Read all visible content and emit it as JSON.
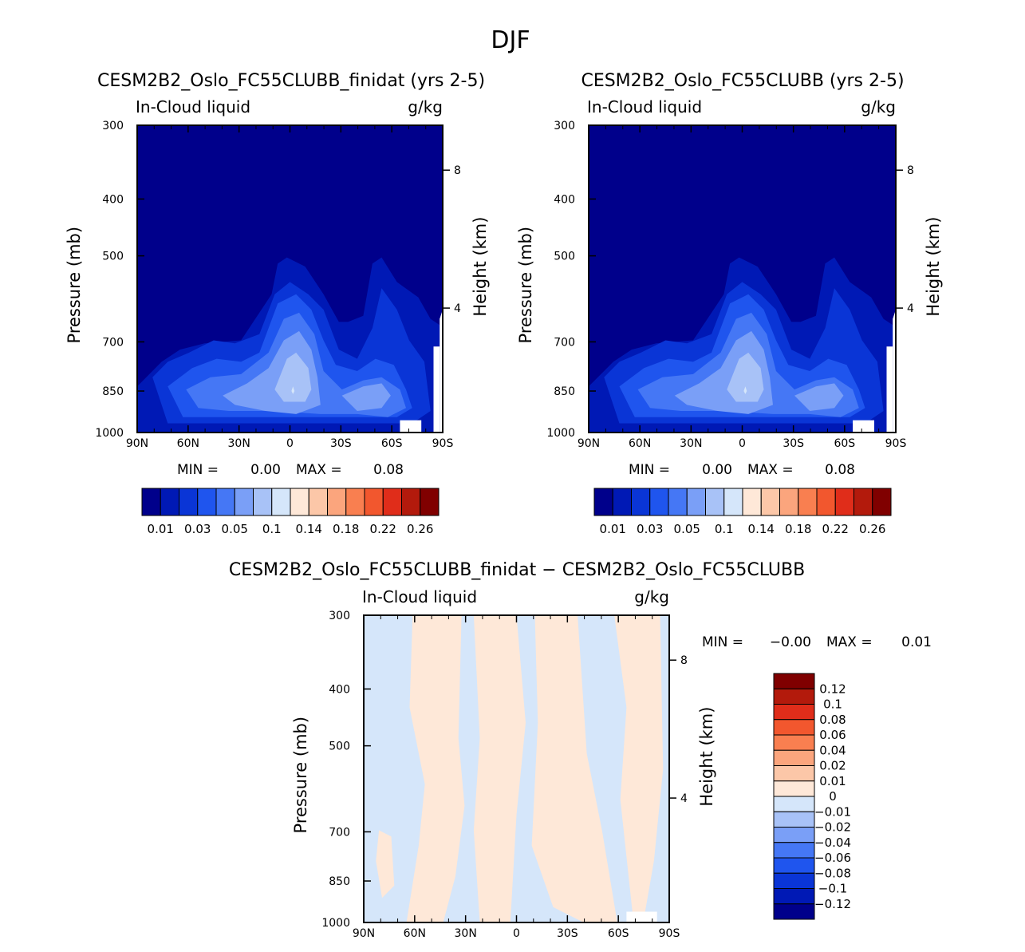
{
  "page_title": "DJF",
  "colors": {
    "cmap_main": [
      "#00008b",
      "#0019b5",
      "#0a35d6",
      "#1f55ee",
      "#4577f5",
      "#7a9ff7",
      "#a8c2f7",
      "#d5e6fa",
      "#fee8d8",
      "#fcc7a8",
      "#fba57d",
      "#f97f50",
      "#f2572e",
      "#e02d1a",
      "#b31a0c",
      "#800000"
    ],
    "cmap_diff": [
      "#00008b",
      "#0019b5",
      "#0a35d6",
      "#1f55ee",
      "#4577f5",
      "#7a9ff7",
      "#a8c2f7",
      "#d5e6fa",
      "#fee8d8",
      "#fcc7a8",
      "#fba57d",
      "#f97f50",
      "#f2572e",
      "#e02d1a",
      "#b31a0c",
      "#800000"
    ]
  },
  "chart_data": [
    {
      "type": "contour",
      "title": "CESM2B2_Oslo_FC55CLUBB_finidat (yrs 2-5)",
      "variable": "In-Cloud liquid",
      "units": "g/kg",
      "ylabel": "Pressure (mb)",
      "y2label": "Height (km)",
      "x_ticks": [
        "90N",
        "60N",
        "30N",
        "0",
        "30S",
        "60S",
        "90S"
      ],
      "y_ticks": [
        "300",
        "400",
        "500",
        "700",
        "850",
        "1000"
      ],
      "y2_ticks": [
        "8",
        "4"
      ],
      "stats": {
        "min_label": "MIN =",
        "min": "0.00",
        "max_label": "MAX =",
        "max": "0.08"
      },
      "colorbar_labels": [
        "0.01",
        "0.03",
        "0.05",
        "0.1",
        "0.14",
        "0.18",
        "0.22",
        "0.26"
      ]
    },
    {
      "type": "contour",
      "title": "CESM2B2_Oslo_FC55CLUBB (yrs 2-5)",
      "variable": "In-Cloud liquid",
      "units": "g/kg",
      "ylabel": "Pressure (mb)",
      "y2label": "Height (km)",
      "x_ticks": [
        "90N",
        "60N",
        "30N",
        "0",
        "30S",
        "60S",
        "90S"
      ],
      "y_ticks": [
        "300",
        "400",
        "500",
        "700",
        "850",
        "1000"
      ],
      "y2_ticks": [
        "8",
        "4"
      ],
      "stats": {
        "min_label": "MIN =",
        "min": "0.00",
        "max_label": "MAX =",
        "max": "0.08"
      },
      "colorbar_labels": [
        "0.01",
        "0.03",
        "0.05",
        "0.1",
        "0.14",
        "0.18",
        "0.22",
        "0.26"
      ]
    },
    {
      "type": "contour",
      "title": "CESM2B2_Oslo_FC55CLUBB_finidat − CESM2B2_Oslo_FC55CLUBB",
      "variable": "In-Cloud liquid",
      "units": "g/kg",
      "ylabel": "Pressure (mb)",
      "y2label": "Height (km)",
      "x_ticks": [
        "90N",
        "60N",
        "30N",
        "0",
        "30S",
        "60S",
        "90S"
      ],
      "y_ticks": [
        "300",
        "400",
        "500",
        "700",
        "850",
        "1000"
      ],
      "y2_ticks": [
        "8",
        "4"
      ],
      "stats": {
        "min_label": "MIN =",
        "min": "−0.00",
        "max_label": "MAX =",
        "max": "0.01"
      },
      "colorbar_labels": [
        "0.12",
        "0.1",
        "0.08",
        "0.06",
        "0.04",
        "0.02",
        "0.01",
        "0",
        "−0.01",
        "−0.02",
        "−0.04",
        "−0.06",
        "−0.08",
        "−0.1",
        "−0.12"
      ]
    }
  ]
}
